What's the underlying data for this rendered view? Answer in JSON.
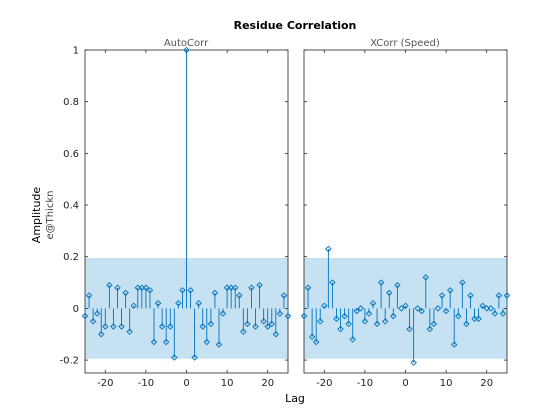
{
  "figure": {
    "title": "Residue Correlation",
    "xlabel": "Lag",
    "ylabel": "Amplitude",
    "ylabel_sub": "e@Thickn"
  },
  "colors": {
    "stem": "#0072bd",
    "band": "#c6e2f2",
    "axis": "#262626"
  },
  "chart_data": [
    {
      "type": "stem",
      "title": "AutoCorr",
      "xlim": [
        -25,
        25
      ],
      "ylim": [
        -0.25,
        1.0
      ],
      "xticks": [
        -20,
        -10,
        0,
        10,
        20
      ],
      "yticks": [
        -0.2,
        0,
        0.2,
        0.4,
        0.6,
        0.8,
        1
      ],
      "ytick_labels": [
        "-0.2",
        "0",
        "0.2",
        "0.4",
        "0.6",
        "0.8",
        "1"
      ],
      "confidence_band": [
        -0.195,
        0.195
      ],
      "x": [
        -25,
        -24,
        -23,
        -22,
        -21,
        -20,
        -19,
        -18,
        -17,
        -16,
        -15,
        -14,
        -13,
        -12,
        -11,
        -10,
        -9,
        -8,
        -7,
        -6,
        -5,
        -4,
        -3,
        -2,
        -1,
        0,
        1,
        2,
        3,
        4,
        5,
        6,
        7,
        8,
        9,
        10,
        11,
        12,
        13,
        14,
        15,
        16,
        17,
        18,
        19,
        20,
        21,
        22,
        23,
        24,
        25
      ],
      "y": [
        -0.03,
        0.05,
        -0.05,
        -0.02,
        -0.1,
        -0.07,
        0.09,
        -0.07,
        0.08,
        -0.07,
        0.06,
        -0.09,
        0.01,
        0.08,
        0.08,
        0.08,
        0.07,
        -0.13,
        0.02,
        -0.07,
        -0.13,
        -0.07,
        -0.19,
        0.02,
        0.07,
        1.0,
        0.07,
        -0.19,
        0.02,
        -0.07,
        -0.13,
        -0.06,
        0.06,
        -0.14,
        -0.02,
        0.08,
        0.08,
        0.08,
        0.05,
        -0.09,
        -0.06,
        0.08,
        -0.07,
        0.09,
        -0.05,
        -0.07,
        -0.06,
        -0.1,
        -0.02,
        0.05,
        -0.03
      ]
    },
    {
      "type": "stem",
      "title": "XCorr (Speed)",
      "xlim": [
        -25,
        25
      ],
      "ylim": [
        -0.25,
        1.0
      ],
      "xticks": [
        -20,
        -10,
        0,
        10,
        20
      ],
      "yticks": [
        -0.2,
        0,
        0.2,
        0.4,
        0.6,
        0.8,
        1
      ],
      "confidence_band": [
        -0.195,
        0.195
      ],
      "x": [
        -25,
        -24,
        -23,
        -22,
        -21,
        -20,
        -19,
        -18,
        -17,
        -16,
        -15,
        -14,
        -13,
        -12,
        -11,
        -10,
        -9,
        -8,
        -7,
        -6,
        -5,
        -4,
        -3,
        -2,
        -1,
        0,
        1,
        2,
        3,
        4,
        5,
        6,
        7,
        8,
        9,
        10,
        11,
        12,
        13,
        14,
        15,
        16,
        17,
        18,
        19,
        20,
        21,
        22,
        23,
        24,
        25
      ],
      "y": [
        -0.03,
        0.08,
        -0.11,
        -0.13,
        -0.05,
        0.01,
        0.23,
        0.1,
        -0.04,
        -0.08,
        -0.03,
        -0.06,
        -0.12,
        -0.01,
        0.0,
        -0.05,
        -0.02,
        0.02,
        -0.06,
        0.1,
        -0.05,
        0.06,
        -0.03,
        0.09,
        0.0,
        0.01,
        -0.08,
        -0.21,
        0.0,
        -0.01,
        0.12,
        -0.08,
        -0.06,
        0.0,
        0.05,
        -0.01,
        0.07,
        -0.14,
        -0.03,
        0.1,
        -0.06,
        0.05,
        -0.04,
        -0.04,
        0.01,
        0.0,
        0.0,
        -0.02,
        0.05,
        -0.02,
        0.05
      ]
    }
  ]
}
